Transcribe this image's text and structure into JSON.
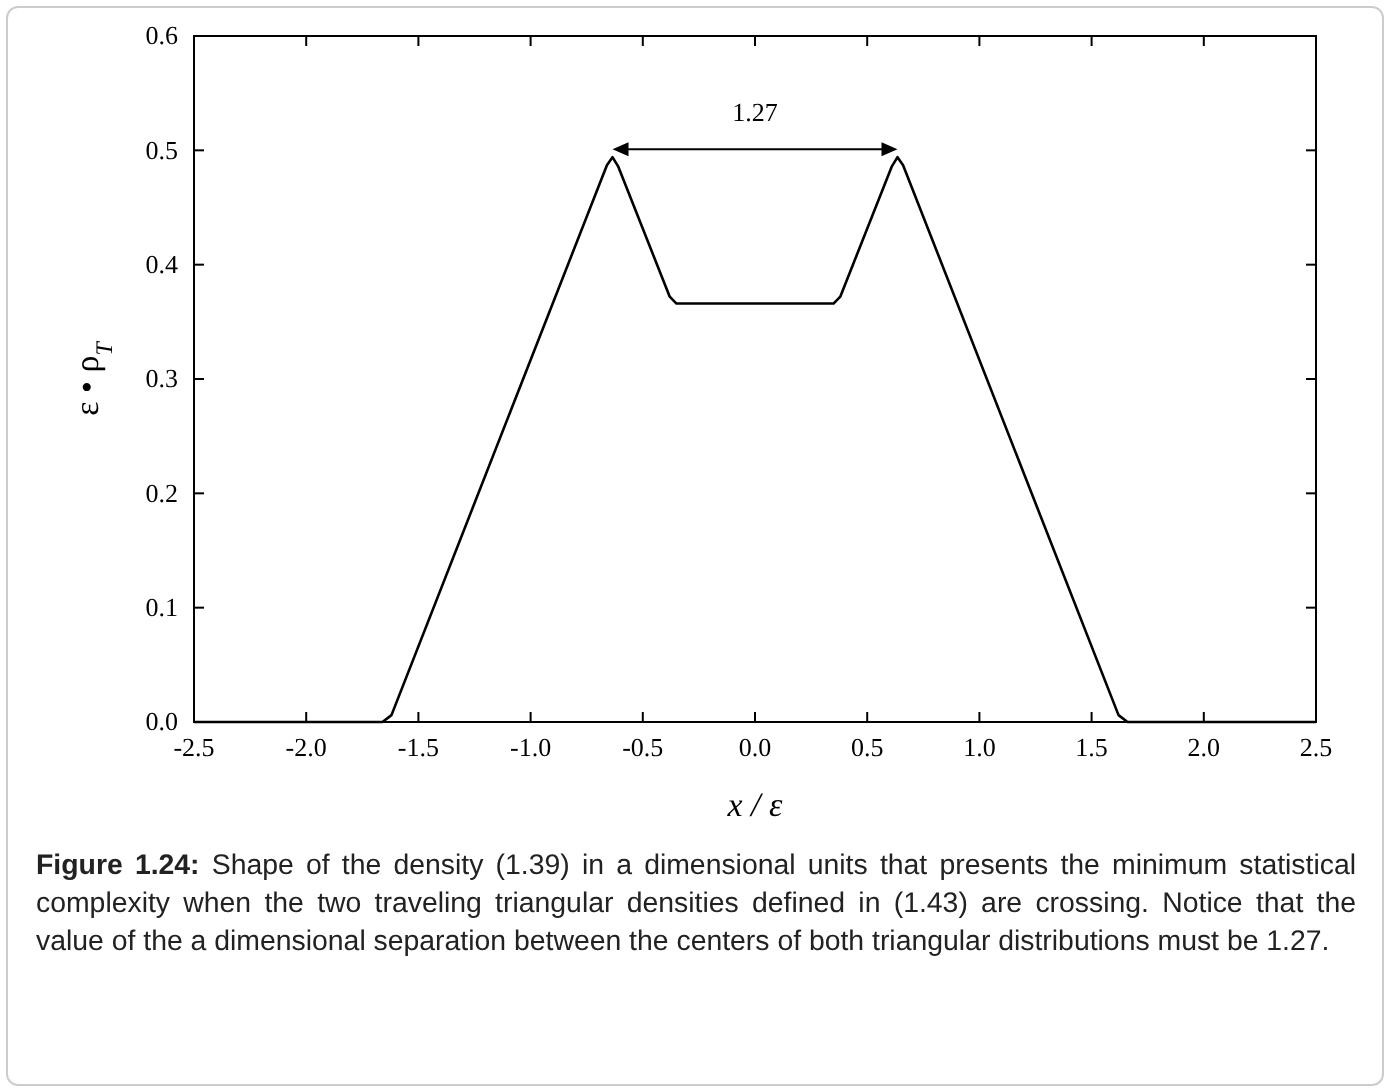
{
  "chart_data": {
    "type": "line",
    "xlabel": "x / ε",
    "ylabel": "ε • ρ$_{T}$",
    "x": [
      -2.5,
      -1.66,
      -1.62,
      -0.66,
      -0.635,
      -0.61,
      -0.38,
      -0.35,
      0.35,
      0.38,
      0.61,
      0.635,
      0.66,
      1.62,
      1.66,
      2.5
    ],
    "series": [
      {
        "color": "#000000",
        "values": [
          0,
          0,
          0.006,
          0.487,
          0.494,
          0.486,
          0.372,
          0.366,
          0.366,
          0.372,
          0.486,
          0.494,
          0.487,
          0.006,
          0,
          0
        ]
      }
    ],
    "xlim": [
      -2.5,
      2.5
    ],
    "xticks": [
      {
        "value": -2.5,
        "label": "-2.5"
      },
      {
        "value": -2,
        "label": "-2.0"
      },
      {
        "value": -1.5,
        "label": "-1.5"
      },
      {
        "value": -1,
        "label": "-1.0"
      },
      {
        "value": -0.5,
        "label": "-0.5"
      },
      {
        "value": 0,
        "label": "0.0"
      },
      {
        "value": 0.5,
        "label": "0.5"
      },
      {
        "value": 1,
        "label": "1.0"
      },
      {
        "value": 1.5,
        "label": "1.5"
      },
      {
        "value": 2,
        "label": "2.0"
      },
      {
        "value": 2.5,
        "label": "2.5"
      }
    ],
    "ylim": [
      0,
      0.6
    ],
    "yticks": [
      {
        "value": 0,
        "label": "0.0"
      },
      {
        "value": 0.1,
        "label": "0.1"
      },
      {
        "value": 0.2,
        "label": "0.2"
      },
      {
        "value": 0.3,
        "label": "0.3"
      },
      {
        "value": 0.4,
        "label": "0.4"
      },
      {
        "value": 0.5,
        "label": "0.5"
      },
      {
        "value": 0.6,
        "label": "0.6"
      }
    ],
    "grid": false,
    "marker": "none",
    "line_style": "solid",
    "annotations": [
      "1.27",
      "Figure 1.24: Shape of the density (1.39) in a dimensional units that presents the minimum statistical complexity when the two traveling triangular densities defined in (1.43) are crossing. Notice that the value of the a dimensional separation between the centers of both triangular distributions must be 1.27."
    ]
  }
}
